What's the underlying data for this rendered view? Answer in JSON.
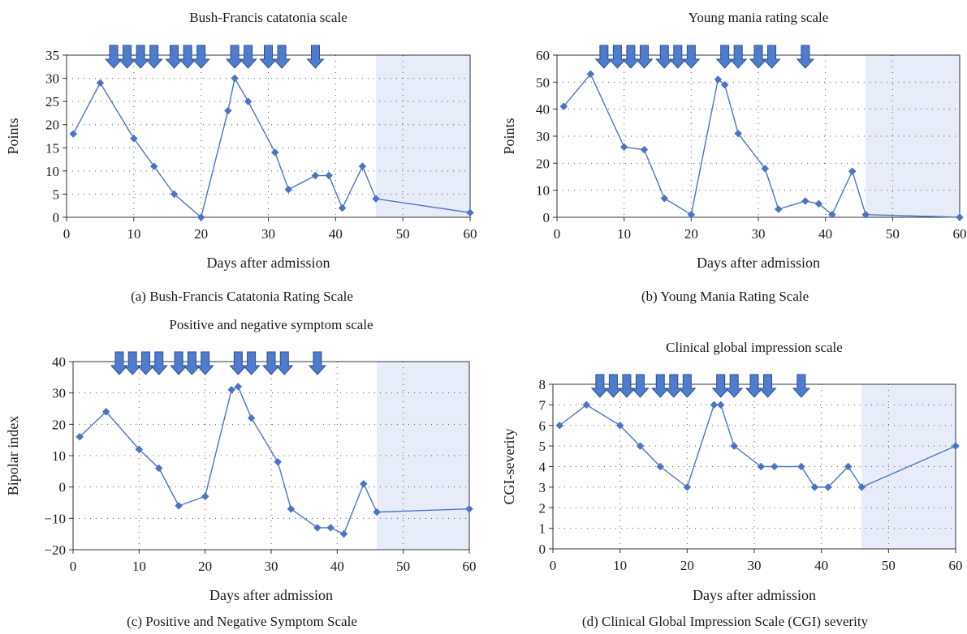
{
  "x_days": [
    1,
    5,
    10,
    13,
    16,
    20,
    24,
    25,
    27,
    31,
    33,
    37,
    39,
    41,
    44,
    46,
    60
  ],
  "arrow_days": [
    7,
    9,
    11,
    13,
    16,
    18,
    20,
    25,
    27,
    30,
    32,
    37
  ],
  "colors": {
    "line": "#4a74c4",
    "marker": "#4a74c4",
    "arrow_fill": "#4f7ccc",
    "arrow_stroke": "#2c4f9a",
    "shade": "#e7ecf8"
  },
  "captions": {
    "a": "(a) Bush-Francis Catatonia Rating Scale",
    "b": "(b) Young Mania Rating Scale",
    "c": "(c) Positive and Negative Symptom Scale",
    "d": "(d) Clinical Global Impression Scale (CGI) severity"
  },
  "chart_data": [
    {
      "type": "line",
      "title": "Bush-Francis catatonia scale",
      "xlabel": "Days after admission",
      "ylabel": "Points",
      "xlim": [
        0,
        60
      ],
      "ylim": [
        0,
        35
      ],
      "xticks": [
        0,
        10,
        20,
        30,
        40,
        50,
        60
      ],
      "yticks": [
        0,
        5,
        10,
        15,
        20,
        25,
        30,
        35
      ],
      "shaded_region": [
        46,
        60
      ],
      "grid": true,
      "x": [
        1,
        5,
        10,
        13,
        16,
        20,
        24,
        25,
        27,
        31,
        33,
        37,
        39,
        41,
        44,
        46,
        60
      ],
      "values": [
        18,
        29,
        17,
        11,
        5,
        0,
        23,
        30,
        25,
        14,
        6,
        9,
        9,
        2,
        11,
        4,
        1
      ]
    },
    {
      "type": "line",
      "title": "Young mania rating scale",
      "xlabel": "Days after admission",
      "ylabel": "Points",
      "xlim": [
        0,
        60
      ],
      "ylim": [
        0,
        60
      ],
      "xticks": [
        0,
        10,
        20,
        30,
        40,
        50,
        60
      ],
      "yticks": [
        0,
        10,
        20,
        30,
        40,
        50,
        60
      ],
      "shaded_region": [
        46,
        60
      ],
      "grid": true,
      "x": [
        1,
        5,
        10,
        13,
        16,
        20,
        24,
        25,
        27,
        31,
        33,
        37,
        39,
        41,
        44,
        46,
        60
      ],
      "values": [
        41,
        53,
        26,
        25,
        7,
        1,
        51,
        49,
        31,
        18,
        3,
        6,
        5,
        1,
        17,
        1,
        0
      ]
    },
    {
      "type": "line",
      "title": "Positive and negative symptom scale",
      "xlabel": "Days after admission",
      "ylabel": "Bipolar index",
      "xlim": [
        0,
        60
      ],
      "ylim": [
        -20,
        40
      ],
      "xticks": [
        0,
        10,
        20,
        30,
        40,
        50,
        60
      ],
      "yticks": [
        -20,
        -10,
        0,
        10,
        20,
        30,
        40
      ],
      "ytick_labels": [
        "−20",
        "−10",
        "0",
        "10",
        "20",
        "30",
        "40"
      ],
      "shaded_region": [
        46,
        60
      ],
      "grid": true,
      "x": [
        1,
        5,
        10,
        13,
        16,
        20,
        24,
        25,
        27,
        31,
        33,
        37,
        39,
        41,
        44,
        46,
        60
      ],
      "values": [
        16,
        24,
        12,
        6,
        -6,
        -3,
        31,
        32,
        22,
        8,
        -7,
        -13,
        -13,
        -15,
        1,
        -8,
        -7
      ]
    },
    {
      "type": "line",
      "title": "Clinical global impression scale",
      "xlabel": "Days after admission",
      "ylabel": "CGI-severity",
      "xlim": [
        0,
        60
      ],
      "ylim": [
        0,
        8
      ],
      "xticks": [
        0,
        10,
        20,
        30,
        40,
        50,
        60
      ],
      "yticks": [
        0,
        1,
        2,
        3,
        4,
        5,
        6,
        7,
        8
      ],
      "shaded_region": [
        46,
        60
      ],
      "grid": true,
      "x": [
        1,
        5,
        10,
        13,
        16,
        20,
        24,
        25,
        27,
        31,
        33,
        37,
        39,
        41,
        44,
        46,
        60
      ],
      "values": [
        6,
        7,
        6,
        5,
        4,
        3,
        7,
        7,
        5,
        4,
        4,
        4,
        3,
        3,
        4,
        3,
        5
      ]
    }
  ]
}
